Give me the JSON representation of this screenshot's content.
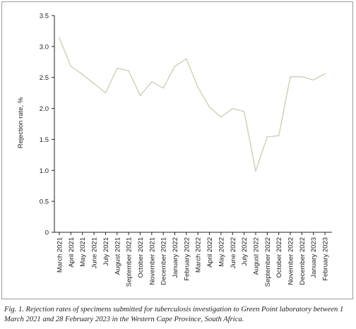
{
  "chart_data": {
    "type": "line",
    "ylabel": "Rejection rate, %",
    "ylim": [
      0,
      3.5
    ],
    "y_ticks": [
      "0",
      "0.5",
      "1.0",
      "1.5",
      "2.0",
      "2.5",
      "3.0",
      "3.5"
    ],
    "categories": [
      "March 2021",
      "April 2021",
      "May 2021",
      "June 2021",
      "July 2021",
      "August 2021",
      "September 2021",
      "October 2021",
      "November 2021",
      "December 2021",
      "January 2022",
      "February 2022",
      "March 2022",
      "April 2022",
      "May 2022",
      "June 2022",
      "July 2022",
      "August 2022",
      "September 2022",
      "October 2022",
      "November 2022",
      "December 2022",
      "January 2023",
      "February 2023"
    ],
    "series": [
      {
        "values": [
          3.14,
          2.68,
          2.55,
          2.4,
          2.25,
          2.65,
          2.61,
          2.21,
          2.43,
          2.33,
          2.68,
          2.8,
          2.34,
          2.02,
          1.86,
          2.0,
          1.95,
          0.99,
          1.54,
          1.56,
          2.51,
          2.51,
          2.46,
          2.56
        ],
        "color": "#c9cdb0"
      }
    ],
    "grid": false,
    "axis_color": "#222222"
  },
  "caption": "Fig. 1. Rejection rates of specimens submitted for tuberculosis investigation to Green Point laboratory between 1 March 2021 and 28 February 2023 in the Western Cape Province, South Africa."
}
